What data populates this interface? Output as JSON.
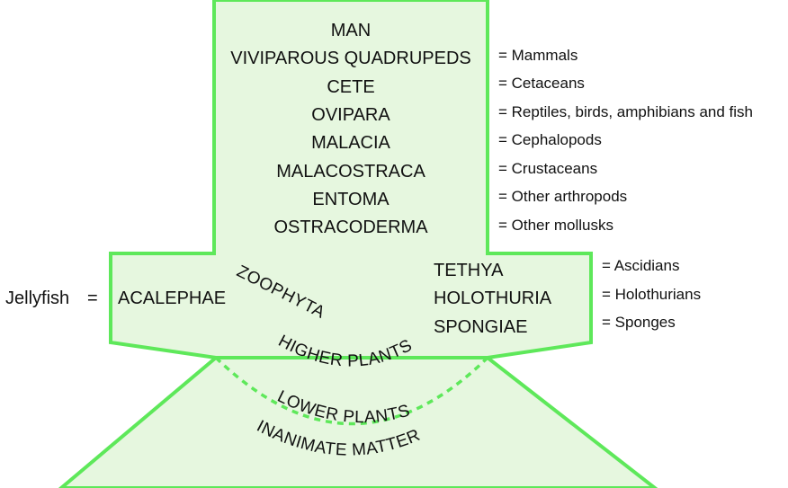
{
  "colors": {
    "shape_fill": "#e6f7df",
    "shape_stroke": "#5ee85a",
    "text": "#111111"
  },
  "column_levels": [
    {
      "name": "MAN",
      "equivalent": ""
    },
    {
      "name": "VIVIPAROUS QUADRUPEDS",
      "equivalent": "= Mammals"
    },
    {
      "name": "CETE",
      "equivalent": "= Cetaceans"
    },
    {
      "name": "OVIPARA",
      "equivalent": "= Reptiles, birds, amphibians and fish"
    },
    {
      "name": "MALACIA",
      "equivalent": "= Cephalopods"
    },
    {
      "name": "MALACOSTRACA",
      "equivalent": "= Crustaceans"
    },
    {
      "name": "ENTOMA",
      "equivalent": "= Other arthropods"
    },
    {
      "name": "OSTRACODERMA",
      "equivalent": "= Other mollusks"
    }
  ],
  "left_branch": {
    "prefix": "Jellyfish",
    "equals": "=",
    "name": "ACALEPHAE"
  },
  "right_branch": [
    {
      "name": "TETHYA",
      "equivalent": "= Ascidians"
    },
    {
      "name": "HOLOTHURIA",
      "equivalent": "= Holothurians"
    },
    {
      "name": "SPONGIAE",
      "equivalent": "= Sponges"
    }
  ],
  "curved_labels": {
    "zoophyta": "ZOOPHYTA",
    "higher_plants": "HIGHER PLANTS",
    "lower_plants": "LOWER PLANTS",
    "inanimate_matter": "INANIMATE MATTER"
  }
}
